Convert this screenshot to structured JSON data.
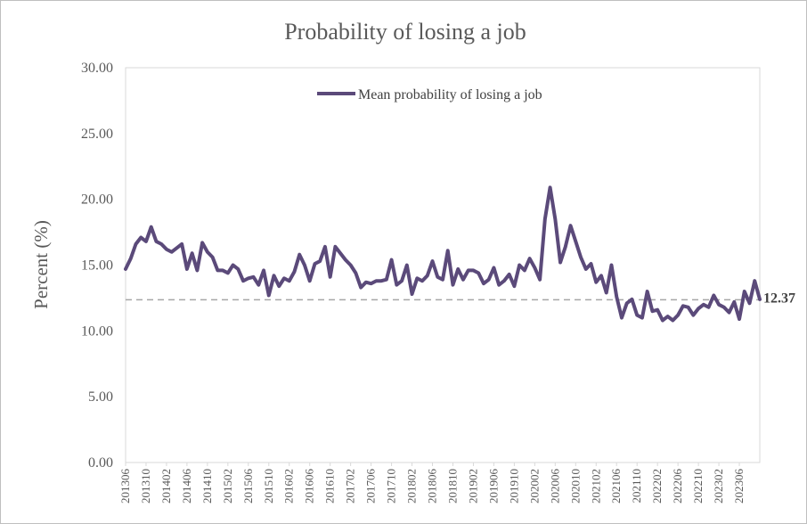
{
  "chart_data": {
    "type": "line",
    "title": "Probability  of losing  a job",
    "ylabel": "Percent (%)",
    "xlabel": "",
    "ylim": [
      0,
      30
    ],
    "yticks": [
      "0.00",
      "5.00",
      "10.00",
      "15.00",
      "20.00",
      "25.00",
      "30.00"
    ],
    "x_tick_labels": [
      "201306",
      "201310",
      "201402",
      "201406",
      "201410",
      "201502",
      "201506",
      "201510",
      "201602",
      "201606",
      "201610",
      "201702",
      "201706",
      "201710",
      "201802",
      "201806",
      "201810",
      "201902",
      "201906",
      "201910",
      "202002",
      "202006",
      "202010",
      "202102",
      "202106",
      "202110",
      "202202",
      "202206",
      "202210",
      "202302",
      "202306"
    ],
    "grid": false,
    "legend_position": "top-center",
    "series_color": "#5b4a7a",
    "reference_color": "#a6a6a6",
    "reference_line": {
      "value": 12.37,
      "label": "12.37"
    },
    "x": [
      "201306",
      "201307",
      "201308",
      "201309",
      "201310",
      "201311",
      "201312",
      "201401",
      "201402",
      "201403",
      "201404",
      "201405",
      "201406",
      "201407",
      "201408",
      "201409",
      "201410",
      "201411",
      "201412",
      "201501",
      "201502",
      "201503",
      "201504",
      "201505",
      "201506",
      "201507",
      "201508",
      "201509",
      "201510",
      "201511",
      "201512",
      "201601",
      "201602",
      "201603",
      "201604",
      "201605",
      "201606",
      "201607",
      "201608",
      "201609",
      "201610",
      "201611",
      "201612",
      "201701",
      "201702",
      "201703",
      "201704",
      "201705",
      "201706",
      "201707",
      "201708",
      "201709",
      "201710",
      "201711",
      "201712",
      "201801",
      "201802",
      "201803",
      "201804",
      "201805",
      "201806",
      "201807",
      "201808",
      "201809",
      "201810",
      "201811",
      "201812",
      "201901",
      "201902",
      "201903",
      "201904",
      "201905",
      "201906",
      "201907",
      "201908",
      "201909",
      "201910",
      "201911",
      "201912",
      "202001",
      "202002",
      "202003",
      "202004",
      "202005",
      "202006",
      "202007",
      "202008",
      "202009",
      "202010",
      "202011",
      "202012",
      "202101",
      "202102",
      "202103",
      "202104",
      "202105",
      "202106",
      "202107",
      "202108",
      "202109",
      "202110",
      "202111",
      "202112",
      "202201",
      "202202",
      "202203",
      "202204",
      "202205",
      "202206",
      "202207",
      "202208",
      "202209",
      "202210",
      "202211",
      "202212",
      "202301",
      "202302",
      "202303",
      "202304",
      "202305",
      "202306",
      "202307",
      "202308",
      "202309",
      "202310"
    ],
    "series": [
      {
        "name": "Mean probability of losing a job",
        "values": [
          14.7,
          15.5,
          16.6,
          17.1,
          16.8,
          17.9,
          16.8,
          16.6,
          16.2,
          16.0,
          16.3,
          16.6,
          14.7,
          15.9,
          14.6,
          16.7,
          16.0,
          15.6,
          14.6,
          14.6,
          14.4,
          15.0,
          14.7,
          13.8,
          14.0,
          14.1,
          13.5,
          14.6,
          12.7,
          14.2,
          13.4,
          14.0,
          13.8,
          14.5,
          15.8,
          15.0,
          13.8,
          15.1,
          15.3,
          16.4,
          14.1,
          16.4,
          15.9,
          15.4,
          15.0,
          14.4,
          13.3,
          13.7,
          13.6,
          13.8,
          13.8,
          13.9,
          15.4,
          13.5,
          13.8,
          15.0,
          12.8,
          14.0,
          13.8,
          14.2,
          15.3,
          14.1,
          13.9,
          16.1,
          13.5,
          14.7,
          13.9,
          14.6,
          14.6,
          14.4,
          13.6,
          13.9,
          14.8,
          13.5,
          13.8,
          14.3,
          13.4,
          15.0,
          14.6,
          15.5,
          14.8,
          13.9,
          18.5,
          20.9,
          18.5,
          15.2,
          16.4,
          18.0,
          16.8,
          15.6,
          14.7,
          15.1,
          13.7,
          14.2,
          12.9,
          15.0,
          12.6,
          11.0,
          12.1,
          12.4,
          11.2,
          11.0,
          13.0,
          11.5,
          11.6,
          10.8,
          11.1,
          10.8,
          11.2,
          11.9,
          11.8,
          11.2,
          11.7,
          12.0,
          11.8,
          12.7,
          12.0,
          11.8,
          11.4,
          12.2,
          10.9,
          13.0,
          12.1,
          13.8,
          12.4
        ]
      }
    ]
  }
}
